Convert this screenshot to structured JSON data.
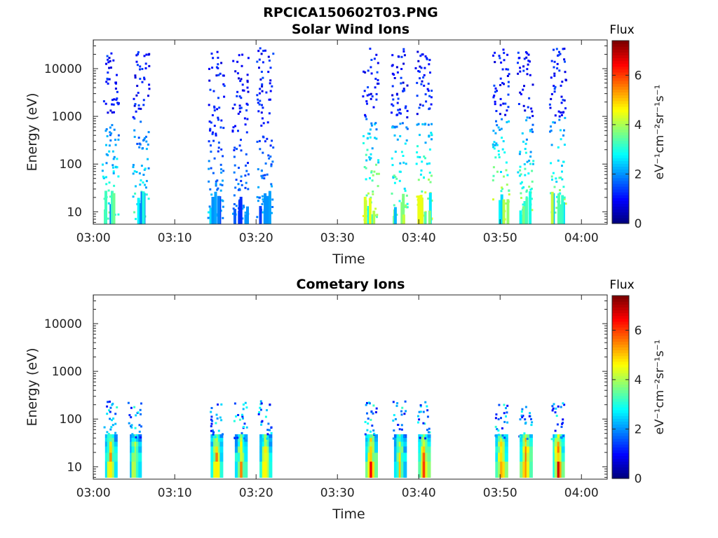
{
  "figure_title": "RPCICA150602T03.PNG",
  "chart_data": [
    {
      "type": "heatmap",
      "title": "Solar Wind Ions",
      "xlabel": "Time",
      "ylabel": "Energy (eV)",
      "xlim": [
        "02:59:59",
        "04:03:10"
      ],
      "x_ticks": [
        "03:00",
        "03:10",
        "03:20",
        "03:30",
        "03:40",
        "03:50",
        "04:00"
      ],
      "ylim": [
        5.5,
        40000
      ],
      "y_scale": "log",
      "y_ticks": [
        "10",
        "100",
        "1000",
        "10000"
      ],
      "colorbar": {
        "title": "Flux",
        "label": "eV⁻¹cm⁻²sr⁻¹s⁻¹",
        "range": [
          0,
          7.4
        ],
        "ticks": [
          "0",
          "2",
          "4",
          "6"
        ],
        "colormap": "jet"
      },
      "bursts": [
        {
          "time": "03:02",
          "flux_max": 3.6
        },
        {
          "time": "03:05:45",
          "flux_max": 3.4
        },
        {
          "time": "03:15",
          "flux_max": 2.6
        },
        {
          "time": "03:18",
          "flux_max": 2.2
        },
        {
          "time": "03:21",
          "flux_max": 2.4
        },
        {
          "time": "03:34",
          "flux_max": 4.6
        },
        {
          "time": "03:37:30",
          "flux_max": 4.2
        },
        {
          "time": "03:40:30",
          "flux_max": 4.6
        },
        {
          "time": "03:50",
          "flux_max": 4.6
        },
        {
          "time": "03:53",
          "flux_max": 4.2
        },
        {
          "time": "03:57",
          "flux_max": 4.2
        }
      ]
    },
    {
      "type": "heatmap",
      "title": "Cometary Ions",
      "xlabel": "Time",
      "ylabel": "Energy (eV)",
      "xlim": [
        "02:59:59",
        "04:03:10"
      ],
      "x_ticks": [
        "03:00",
        "03:10",
        "03:20",
        "03:30",
        "03:40",
        "03:50",
        "04:00"
      ],
      "ylim": [
        5.5,
        40000
      ],
      "y_scale": "log",
      "y_ticks": [
        "10",
        "100",
        "1000",
        "10000"
      ],
      "colorbar": {
        "title": "Flux",
        "label": "eV⁻¹cm⁻²sr⁻¹s⁻¹",
        "range": [
          0,
          7.4
        ],
        "ticks": [
          "0",
          "2",
          "4",
          "6"
        ],
        "colormap": "jet"
      },
      "bursts": [
        {
          "time": "03:02",
          "flux_max": 5.6
        },
        {
          "time": "03:05",
          "flux_max": 5.2
        },
        {
          "time": "03:15",
          "flux_max": 6.0
        },
        {
          "time": "03:18",
          "flux_max": 5.4
        },
        {
          "time": "03:21",
          "flux_max": 5.6
        },
        {
          "time": "03:34",
          "flux_max": 6.4
        },
        {
          "time": "03:37:30",
          "flux_max": 5.2
        },
        {
          "time": "03:40:30",
          "flux_max": 6.6
        },
        {
          "time": "03:50",
          "flux_max": 6.4
        },
        {
          "time": "03:53",
          "flux_max": 6.6
        },
        {
          "time": "03:57",
          "flux_max": 6.6
        }
      ]
    }
  ]
}
